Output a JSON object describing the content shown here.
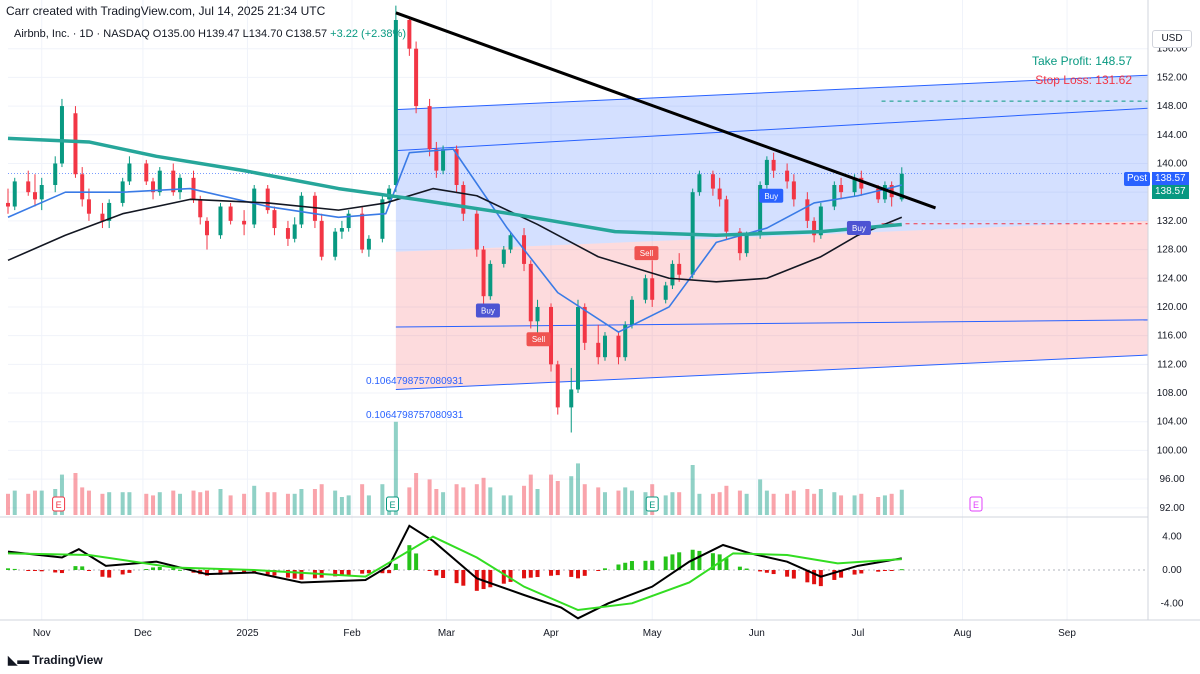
{
  "header": {
    "credit": "Carr created with TradingView.com, Jul 14, 2025 21:34 UTC",
    "symbol_line": "Airbnb, Inc. · 1D · NASDAQ",
    "ohlc": "O135.00 H139.47 L134.70 C138.57",
    "change": "+3.22 (+2.38%)"
  },
  "annotations": {
    "take_profit": "Take Profit: 148.57",
    "stop_loss": "Stop Loss: 131.62",
    "fib_1": "0.1064798757080931",
    "fib_2": "0.1064798757080931",
    "post_label": "Post",
    "post_value": "138.57",
    "last_value": "138.57",
    "currency": "USD",
    "signals": [
      {
        "label": "Buy",
        "date": "2025-03-13",
        "price": 119.5,
        "color": "#4d54d3"
      },
      {
        "label": "Sell",
        "date": "2025-03-28",
        "price": 115.5,
        "color": "#ef5350"
      },
      {
        "label": "Sell",
        "date": "2025-04-29",
        "price": 127.5,
        "color": "#ef5350"
      },
      {
        "label": "Buy",
        "date": "2025-06-05",
        "price": 135.5,
        "color": "#2962ff"
      },
      {
        "label": "Buy",
        "date": "2025-07-01",
        "price": 131.0,
        "color": "#4d54d3"
      }
    ],
    "earnings": [
      {
        "label": "E",
        "date": "2024-11-06",
        "color": "#f23645"
      },
      {
        "label": "E",
        "date": "2025-02-13",
        "color": "#089981"
      },
      {
        "label": "E",
        "date": "2025-05-01",
        "color": "#089981"
      },
      {
        "label": "E",
        "date": "2025-08-05",
        "color": "#e040fb"
      }
    ]
  },
  "brand": "TradingView",
  "chart_data": {
    "type": "candlestick",
    "x_ticks": [
      "Nov",
      "Dec",
      "2025",
      "Feb",
      "Mar",
      "Apr",
      "May",
      "Jun",
      "Jul",
      "Aug",
      "Sep"
    ],
    "price_ticks": [
      92.0,
      96.0,
      100.0,
      104.0,
      108.0,
      112.0,
      116.0,
      120.0,
      124.0,
      128.0,
      132.0,
      136.0,
      140.0,
      144.0,
      148.0,
      152.0,
      156.0
    ],
    "ylim": [
      91,
      160
    ],
    "xlim": [
      "2024-10-22",
      "2025-09-25"
    ],
    "candles": [
      [
        "2024-10-22",
        134.5,
        136.5,
        133.0,
        134.0
      ],
      [
        "2024-10-24",
        134.0,
        138.0,
        133.5,
        137.5
      ],
      [
        "2024-10-28",
        137.5,
        139.0,
        135.5,
        136.0
      ],
      [
        "2024-10-30",
        136.0,
        138.5,
        134.0,
        135.0
      ],
      [
        "2024-11-01",
        135.0,
        138.0,
        133.5,
        137.0
      ],
      [
        "2024-11-05",
        137.0,
        141.0,
        136.0,
        140.0
      ],
      [
        "2024-11-07",
        140.0,
        149.0,
        139.5,
        148.0
      ],
      [
        "2024-11-11",
        147.0,
        148.0,
        138.0,
        138.5
      ],
      [
        "2024-11-13",
        138.5,
        139.5,
        134.0,
        135.0
      ],
      [
        "2024-11-15",
        135.0,
        136.5,
        132.0,
        133.0
      ],
      [
        "2024-11-19",
        133.0,
        134.5,
        131.0,
        132.0
      ],
      [
        "2024-11-21",
        132.0,
        135.0,
        131.0,
        134.5
      ],
      [
        "2024-11-25",
        134.5,
        138.0,
        134.0,
        137.5
      ],
      [
        "2024-11-27",
        137.5,
        141.0,
        137.0,
        140.0
      ],
      [
        "2024-12-02",
        140.0,
        140.5,
        137.0,
        137.5
      ],
      [
        "2024-12-04",
        137.5,
        138.0,
        135.0,
        136.0
      ],
      [
        "2024-12-06",
        136.0,
        139.5,
        135.5,
        139.0
      ],
      [
        "2024-12-10",
        139.0,
        140.0,
        135.5,
        136.0
      ],
      [
        "2024-12-12",
        136.0,
        138.5,
        135.0,
        138.0
      ],
      [
        "2024-12-16",
        138.0,
        139.0,
        134.5,
        135.0
      ],
      [
        "2024-12-18",
        135.0,
        135.5,
        131.5,
        132.5
      ],
      [
        "2024-12-20",
        132.0,
        132.5,
        128.0,
        130.0
      ],
      [
        "2024-12-24",
        130.0,
        134.5,
        129.5,
        134.0
      ],
      [
        "2024-12-27",
        134.0,
        134.5,
        131.5,
        132.0
      ],
      [
        "2024-12-31",
        132.0,
        133.5,
        130.0,
        131.5
      ],
      [
        "2025-01-03",
        131.5,
        137.0,
        131.0,
        136.5
      ],
      [
        "2025-01-07",
        136.5,
        137.0,
        133.0,
        133.5
      ],
      [
        "2025-01-09",
        133.5,
        134.0,
        130.0,
        131.0
      ],
      [
        "2025-01-13",
        131.0,
        132.0,
        128.5,
        129.5
      ],
      [
        "2025-01-15",
        129.5,
        132.5,
        129.0,
        131.5
      ],
      [
        "2025-01-17",
        131.5,
        136.0,
        131.0,
        135.5
      ],
      [
        "2025-01-21",
        135.5,
        136.0,
        131.0,
        132.0
      ],
      [
        "2025-01-23",
        132.0,
        133.0,
        126.5,
        127.0
      ],
      [
        "2025-01-27",
        127.0,
        131.0,
        126.5,
        130.5
      ],
      [
        "2025-01-29",
        130.5,
        132.0,
        129.5,
        131.0
      ],
      [
        "2025-01-31",
        131.0,
        133.5,
        130.5,
        133.0
      ],
      [
        "2025-02-04",
        133.0,
        134.0,
        127.5,
        128.0
      ],
      [
        "2025-02-06",
        128.0,
        130.0,
        127.0,
        129.5
      ],
      [
        "2025-02-10",
        129.5,
        135.5,
        129.0,
        135.0
      ],
      [
        "2025-02-12",
        135.0,
        137.0,
        134.5,
        136.5
      ],
      [
        "2025-02-14",
        137.0,
        162.0,
        136.0,
        160.0
      ],
      [
        "2025-02-18",
        160.0,
        160.5,
        155.0,
        156.0
      ],
      [
        "2025-02-20",
        156.0,
        157.0,
        147.0,
        148.0
      ],
      [
        "2025-02-24",
        148.0,
        149.0,
        141.0,
        142.0
      ],
      [
        "2025-02-26",
        142.0,
        143.0,
        138.0,
        139.0
      ],
      [
        "2025-02-28",
        139.0,
        142.5,
        138.5,
        142.0
      ],
      [
        "2025-03-04",
        142.0,
        142.5,
        136.0,
        137.0
      ],
      [
        "2025-03-06",
        137.0,
        137.5,
        132.0,
        133.0
      ],
      [
        "2025-03-10",
        133.0,
        133.5,
        127.0,
        128.0
      ],
      [
        "2025-03-12",
        128.0,
        128.5,
        120.0,
        121.5
      ],
      [
        "2025-03-14",
        121.5,
        126.5,
        121.0,
        126.0
      ],
      [
        "2025-03-18",
        126.0,
        128.5,
        125.5,
        128.0
      ],
      [
        "2025-03-20",
        128.0,
        130.5,
        127.5,
        130.0
      ],
      [
        "2025-03-24",
        130.0,
        131.0,
        125.0,
        126.0
      ],
      [
        "2025-03-26",
        126.0,
        126.5,
        117.0,
        118.0
      ],
      [
        "2025-03-28",
        118.0,
        121.0,
        116.0,
        120.0
      ],
      [
        "2025-04-01",
        120.0,
        120.5,
        111.0,
        112.0
      ],
      [
        "2025-04-03",
        112.0,
        112.5,
        105.0,
        106.0
      ],
      [
        "2025-04-07",
        106.0,
        111.5,
        102.5,
        108.5
      ],
      [
        "2025-04-09",
        108.5,
        121.0,
        108.0,
        120.0
      ],
      [
        "2025-04-11",
        120.0,
        120.5,
        114.0,
        115.0
      ],
      [
        "2025-04-15",
        115.0,
        117.5,
        112.0,
        113.0
      ],
      [
        "2025-04-17",
        113.0,
        116.5,
        112.5,
        116.0
      ],
      [
        "2025-04-21",
        116.0,
        116.5,
        112.0,
        113.0
      ],
      [
        "2025-04-23",
        113.0,
        118.0,
        112.5,
        117.5
      ],
      [
        "2025-04-25",
        117.5,
        121.5,
        117.0,
        121.0
      ],
      [
        "2025-04-29",
        121.0,
        124.5,
        120.5,
        124.0
      ],
      [
        "2025-05-01",
        124.0,
        126.5,
        120.0,
        121.0
      ],
      [
        "2025-05-05",
        121.0,
        123.5,
        120.5,
        123.0
      ],
      [
        "2025-05-07",
        123.0,
        126.5,
        122.5,
        126.0
      ],
      [
        "2025-05-09",
        126.0,
        127.5,
        123.5,
        124.5
      ],
      [
        "2025-05-13",
        124.5,
        136.5,
        124.0,
        136.0
      ],
      [
        "2025-05-15",
        136.0,
        139.0,
        135.5,
        138.5
      ],
      [
        "2025-05-19",
        138.5,
        139.0,
        135.5,
        136.5
      ],
      [
        "2025-05-21",
        136.5,
        138.0,
        134.0,
        135.0
      ],
      [
        "2025-05-23",
        135.0,
        135.5,
        129.5,
        130.5
      ],
      [
        "2025-05-27",
        130.5,
        131.0,
        126.5,
        127.5
      ],
      [
        "2025-05-29",
        127.5,
        130.5,
        127.0,
        130.0
      ],
      [
        "2025-06-02",
        130.0,
        137.5,
        129.5,
        137.0
      ],
      [
        "2025-06-04",
        137.0,
        141.0,
        136.5,
        140.5
      ],
      [
        "2025-06-06",
        140.5,
        141.5,
        138.0,
        139.0
      ],
      [
        "2025-06-10",
        139.0,
        140.0,
        136.5,
        137.5
      ],
      [
        "2025-06-12",
        137.5,
        138.5,
        134.0,
        135.0
      ],
      [
        "2025-06-16",
        135.0,
        136.0,
        131.0,
        132.0
      ],
      [
        "2025-06-18",
        132.0,
        132.5,
        129.0,
        130.0
      ],
      [
        "2025-06-20",
        130.0,
        134.5,
        129.5,
        134.0
      ],
      [
        "2025-06-24",
        134.0,
        137.5,
        133.5,
        137.0
      ],
      [
        "2025-06-26",
        137.0,
        138.0,
        135.0,
        136.0
      ],
      [
        "2025-06-30",
        136.0,
        138.5,
        135.5,
        138.0
      ],
      [
        "2025-07-02",
        138.0,
        139.0,
        135.5,
        136.5
      ],
      [
        "2025-07-07",
        136.5,
        137.0,
        134.5,
        135.0
      ],
      [
        "2025-07-09",
        135.0,
        137.5,
        134.5,
        137.0
      ],
      [
        "2025-07-11",
        137.0,
        137.5,
        134.0,
        135.3
      ],
      [
        "2025-07-14",
        135.0,
        139.47,
        134.7,
        138.57
      ]
    ],
    "series": [
      {
        "name": "MA fast",
        "color": "#3a7be6",
        "points": [
          [
            "2024-10-22",
            132.5
          ],
          [
            "2024-11-08",
            136
          ],
          [
            "2024-11-25",
            136
          ],
          [
            "2024-12-15",
            136.5
          ],
          [
            "2025-01-07",
            134
          ],
          [
            "2025-01-28",
            132.5
          ],
          [
            "2025-02-11",
            133
          ],
          [
            "2025-02-18",
            141.5
          ],
          [
            "2025-03-03",
            142
          ],
          [
            "2025-03-19",
            131
          ],
          [
            "2025-04-03",
            122
          ],
          [
            "2025-04-21",
            116.5
          ],
          [
            "2025-05-06",
            120
          ],
          [
            "2025-05-20",
            129
          ],
          [
            "2025-06-04",
            131
          ],
          [
            "2025-06-18",
            134.5
          ],
          [
            "2025-07-01",
            135.5
          ],
          [
            "2025-07-14",
            137
          ]
        ]
      },
      {
        "name": "MA mid",
        "color": "#131722",
        "points": [
          [
            "2024-10-22",
            126.5
          ],
          [
            "2024-11-08",
            130
          ],
          [
            "2024-11-25",
            133
          ],
          [
            "2024-12-15",
            135
          ],
          [
            "2025-01-07",
            134.5
          ],
          [
            "2025-01-28",
            133.5
          ],
          [
            "2025-02-11",
            134.5
          ],
          [
            "2025-02-25",
            136.5
          ],
          [
            "2025-03-10",
            135.5
          ],
          [
            "2025-03-28",
            131.5
          ],
          [
            "2025-04-15",
            127
          ],
          [
            "2025-05-06",
            124
          ],
          [
            "2025-05-20",
            123.5
          ],
          [
            "2025-06-04",
            124
          ],
          [
            "2025-06-20",
            127
          ],
          [
            "2025-07-01",
            130
          ],
          [
            "2025-07-14",
            132.5
          ]
        ]
      },
      {
        "name": "MA slow",
        "color": "#26a69a",
        "points": [
          [
            "2024-10-22",
            143.5
          ],
          [
            "2024-11-15",
            143
          ],
          [
            "2024-12-05",
            141
          ],
          [
            "2024-12-31",
            139
          ],
          [
            "2025-01-28",
            136.5
          ],
          [
            "2025-02-20",
            135
          ],
          [
            "2025-03-20",
            133
          ],
          [
            "2025-04-20",
            130.5
          ],
          [
            "2025-05-20",
            130
          ],
          [
            "2025-06-20",
            130.5
          ],
          [
            "2025-07-14",
            131.5
          ]
        ]
      },
      {
        "name": "Trend line",
        "color": "#000000",
        "points": [
          [
            "2025-02-14",
            161
          ],
          [
            "2025-07-24",
            133.8
          ]
        ]
      }
    ],
    "macd": {
      "range": [
        -6,
        6
      ],
      "ticks": [
        4.0,
        0.0,
        -4.0
      ],
      "macd": [
        [
          "2024-10-22",
          2.2
        ],
        [
          "2024-11-07",
          1.5
        ],
        [
          "2024-11-12",
          2.5
        ],
        [
          "2024-11-20",
          0.5
        ],
        [
          "2024-12-05",
          1.0
        ],
        [
          "2024-12-20",
          -0.5
        ],
        [
          "2025-01-03",
          -0.3
        ],
        [
          "2025-01-17",
          -1.5
        ],
        [
          "2025-02-05",
          -1.2
        ],
        [
          "2025-02-12",
          0.5
        ],
        [
          "2025-02-18",
          5.3
        ],
        [
          "2025-02-25",
          3.5
        ],
        [
          "2025-03-10",
          -1.0
        ],
        [
          "2025-03-24",
          -3.0
        ],
        [
          "2025-04-04",
          -4.5
        ],
        [
          "2025-04-09",
          -5.8
        ],
        [
          "2025-04-18",
          -4.0
        ],
        [
          "2025-05-01",
          -2.0
        ],
        [
          "2025-05-12",
          1.0
        ],
        [
          "2025-05-22",
          3.0
        ],
        [
          "2025-05-30",
          2.0
        ],
        [
          "2025-06-10",
          1.0
        ],
        [
          "2025-06-20",
          -0.8
        ],
        [
          "2025-07-01",
          0.5
        ],
        [
          "2025-07-14",
          1.4
        ]
      ],
      "signal": [
        [
          "2024-10-22",
          2.0
        ],
        [
          "2024-11-15",
          1.8
        ],
        [
          "2024-12-10",
          0.3
        ],
        [
          "2025-01-03",
          0.0
        ],
        [
          "2025-02-05",
          -0.8
        ],
        [
          "2025-02-25",
          4.0
        ],
        [
          "2025-03-10",
          1.5
        ],
        [
          "2025-03-24",
          -2.0
        ],
        [
          "2025-04-09",
          -4.8
        ],
        [
          "2025-04-25",
          -4.0
        ],
        [
          "2025-05-12",
          -1.5
        ],
        [
          "2025-05-25",
          2.0
        ],
        [
          "2025-06-10",
          1.8
        ],
        [
          "2025-06-25",
          0.8
        ],
        [
          "2025-07-14",
          1.3
        ]
      ]
    }
  }
}
